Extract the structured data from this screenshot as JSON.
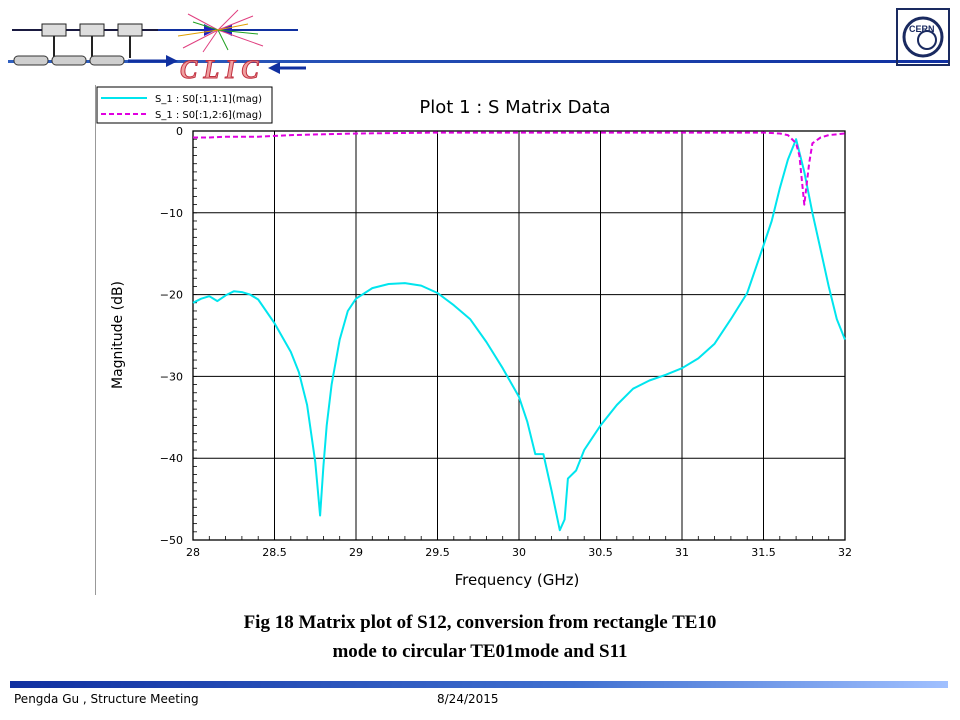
{
  "header": {
    "logo_text": "CLIC",
    "cern_logo_text": "CERN"
  },
  "caption": {
    "line1": "Fig 18  Matrix plot of S12, conversion from rectangle TE10",
    "line2": "mode to circular TE01mode  and S11"
  },
  "footer": {
    "author": "Pengda Gu , Structure Meeting",
    "date": "8/24/2015"
  },
  "colors": {
    "s11": "#00e5ee",
    "s12": "#e000e0",
    "header_blue": "#1030a0"
  },
  "chart_data": {
    "type": "line",
    "title": "Plot 1 : S Matrix Data",
    "xlabel": "Frequency (GHz)",
    "ylabel": "Magnitude (dB)",
    "xlim": [
      28,
      32
    ],
    "ylim": [
      -50,
      0
    ],
    "xticks": [
      28,
      28.5,
      29,
      29.5,
      30,
      30.5,
      31,
      31.5,
      32
    ],
    "xtick_labels": [
      "28",
      "28.5",
      "29",
      "29.5",
      "30",
      "30.5",
      "31",
      "31.5",
      "32"
    ],
    "yticks": [
      0,
      -10,
      -20,
      -30,
      -40,
      -50
    ],
    "ytick_labels": [
      "0",
      "−10",
      "−20",
      "−30",
      "−40",
      "−50"
    ],
    "grid": true,
    "legend_position": "top-left",
    "series": [
      {
        "name": "S_1 : S0[:1,1:1](mag)",
        "style": "solid",
        "x": [
          28.0,
          28.05,
          28.1,
          28.15,
          28.2,
          28.25,
          28.3,
          28.35,
          28.4,
          28.5,
          28.6,
          28.65,
          28.7,
          28.75,
          28.78,
          28.8,
          28.82,
          28.85,
          28.9,
          28.95,
          29.0,
          29.1,
          29.2,
          29.3,
          29.4,
          29.5,
          29.6,
          29.7,
          29.8,
          29.9,
          30.0,
          30.05,
          30.1,
          30.15,
          30.2,
          30.25,
          30.28,
          30.3,
          30.35,
          30.4,
          30.45,
          30.5,
          30.6,
          30.7,
          30.8,
          30.9,
          31.0,
          31.1,
          31.2,
          31.3,
          31.4,
          31.5,
          31.55,
          31.6,
          31.65,
          31.7,
          31.75,
          31.8,
          31.85,
          31.9,
          31.95,
          32.0
        ],
        "values": [
          -21,
          -20.5,
          -20.2,
          -20.8,
          -20.1,
          -19.6,
          -19.7,
          -20.0,
          -20.6,
          -23.5,
          -27.0,
          -29.5,
          -33.5,
          -40.5,
          -47.0,
          -41.0,
          -36.0,
          -31.0,
          -25.5,
          -22.0,
          -20.5,
          -19.2,
          -18.7,
          -18.6,
          -18.9,
          -19.8,
          -21.3,
          -23.0,
          -25.8,
          -29.0,
          -32.5,
          -35.5,
          -39.5,
          -39.5,
          -44.0,
          -48.8,
          -47.5,
          -42.5,
          -41.5,
          -39.0,
          -37.5,
          -36.0,
          -33.5,
          -31.5,
          -30.5,
          -29.8,
          -29.0,
          -27.8,
          -26.0,
          -23.0,
          -19.8,
          -14.0,
          -11.0,
          -7.0,
          -3.5,
          -1.0,
          -5.0,
          -10.0,
          -14.5,
          -19.0,
          -23.0,
          -25.5
        ]
      },
      {
        "name": "S_1 : S0[:1,2:6](mag)",
        "style": "dashed",
        "x": [
          28.0,
          28.1,
          28.2,
          28.3,
          28.4,
          28.5,
          28.6,
          28.8,
          29.0,
          29.5,
          30.0,
          30.5,
          31.0,
          31.5,
          31.6,
          31.65,
          31.7,
          31.72,
          31.75,
          31.78,
          31.8,
          31.85,
          31.9,
          31.95,
          32.0
        ],
        "values": [
          -0.8,
          -0.8,
          -0.7,
          -0.7,
          -0.7,
          -0.6,
          -0.5,
          -0.4,
          -0.3,
          -0.2,
          -0.2,
          -0.2,
          -0.2,
          -0.2,
          -0.3,
          -0.5,
          -1.5,
          -3.0,
          -9.0,
          -4.0,
          -1.5,
          -0.8,
          -0.5,
          -0.4,
          -0.3
        ]
      }
    ]
  }
}
